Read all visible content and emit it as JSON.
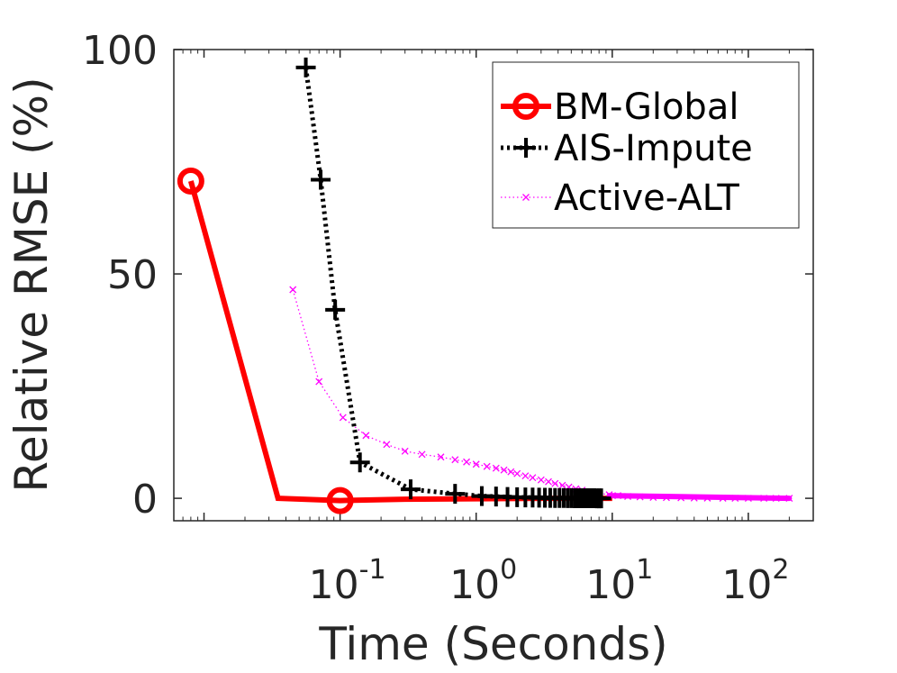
{
  "chart_data": {
    "type": "line",
    "title": "",
    "xlabel": "Time (Seconds)",
    "ylabel": "Relative RMSE (%)",
    "x_scale": "log",
    "xlim": [
      0.006,
      300
    ],
    "ylim": [
      -5,
      100
    ],
    "yticks": [
      0,
      50,
      100
    ],
    "xticks": [
      {
        "value": 0.1,
        "base": "10",
        "exp": "-1"
      },
      {
        "value": 1,
        "base": "10",
        "exp": "0"
      },
      {
        "value": 10,
        "base": "10",
        "exp": "1"
      },
      {
        "value": 100,
        "base": "10",
        "exp": "2"
      }
    ],
    "grid": false,
    "legend_position": "top-right",
    "series": [
      {
        "name": "BM-Global",
        "color": "#ff0000",
        "marker": "circle",
        "line_style": "solid",
        "x": [
          0.008,
          0.035,
          0.1,
          0.3,
          1,
          3,
          10
        ],
        "y": [
          70.7,
          0,
          -0.5,
          -0.2,
          -0.1,
          0,
          0
        ],
        "marker_x": [
          0.008,
          0.1
        ],
        "marker_y": [
          70.7,
          -0.5
        ]
      },
      {
        "name": "AIS-Impute",
        "color": "#000000",
        "marker": "plus",
        "line_style": "dotted",
        "x": [
          0.056,
          0.072,
          0.092,
          0.14,
          0.33,
          0.7,
          1.1,
          1.4,
          1.7,
          2.0,
          2.3,
          2.6,
          2.9,
          3.2,
          3.5,
          3.8,
          4.1,
          4.4,
          4.7,
          5.0,
          5.3,
          5.6,
          5.9,
          6.2,
          6.5,
          6.8,
          7.1,
          7.4,
          7.7,
          8.0,
          8.3
        ],
        "y": [
          96,
          71,
          42,
          8,
          2,
          1,
          0.5,
          0.4,
          0.3,
          0.25,
          0.2,
          0.18,
          0.15,
          0.12,
          0.1,
          0.08,
          0.07,
          0.06,
          0.05,
          0.04,
          0.03,
          0.03,
          0.02,
          0.02,
          0.01,
          0.01,
          0.01,
          0.01,
          0,
          0,
          0
        ]
      },
      {
        "name": "Active-ALT",
        "color": "#ff00ff",
        "marker": "x",
        "line_style": "dotted",
        "x": [
          0.045,
          0.07,
          0.105,
          0.155,
          0.22,
          0.3,
          0.4,
          0.55,
          0.7,
          0.85,
          1.0,
          1.2,
          1.4,
          1.6,
          1.8,
          2.0,
          2.3,
          2.6,
          3.0,
          3.4,
          3.8,
          4.3,
          4.8,
          5.4,
          6.0,
          7.0,
          8.0,
          9.5,
          11,
          13,
          16,
          20,
          25,
          32,
          40,
          50,
          65,
          80,
          100,
          130,
          160,
          200
        ],
        "y": [
          46.5,
          26,
          18,
          14,
          12,
          10.5,
          9.8,
          9.2,
          8.6,
          8.1,
          7.6,
          7.1,
          6.7,
          6.3,
          5.9,
          5.5,
          5.0,
          4.6,
          4.1,
          3.7,
          3.3,
          2.9,
          2.5,
          2.1,
          1.8,
          1.4,
          1.1,
          0.8,
          0.6,
          0.4,
          0.3,
          0.2,
          0.15,
          0.1,
          0.06,
          0.04,
          0.02,
          0.01,
          0,
          0,
          0,
          0
        ]
      }
    ]
  }
}
